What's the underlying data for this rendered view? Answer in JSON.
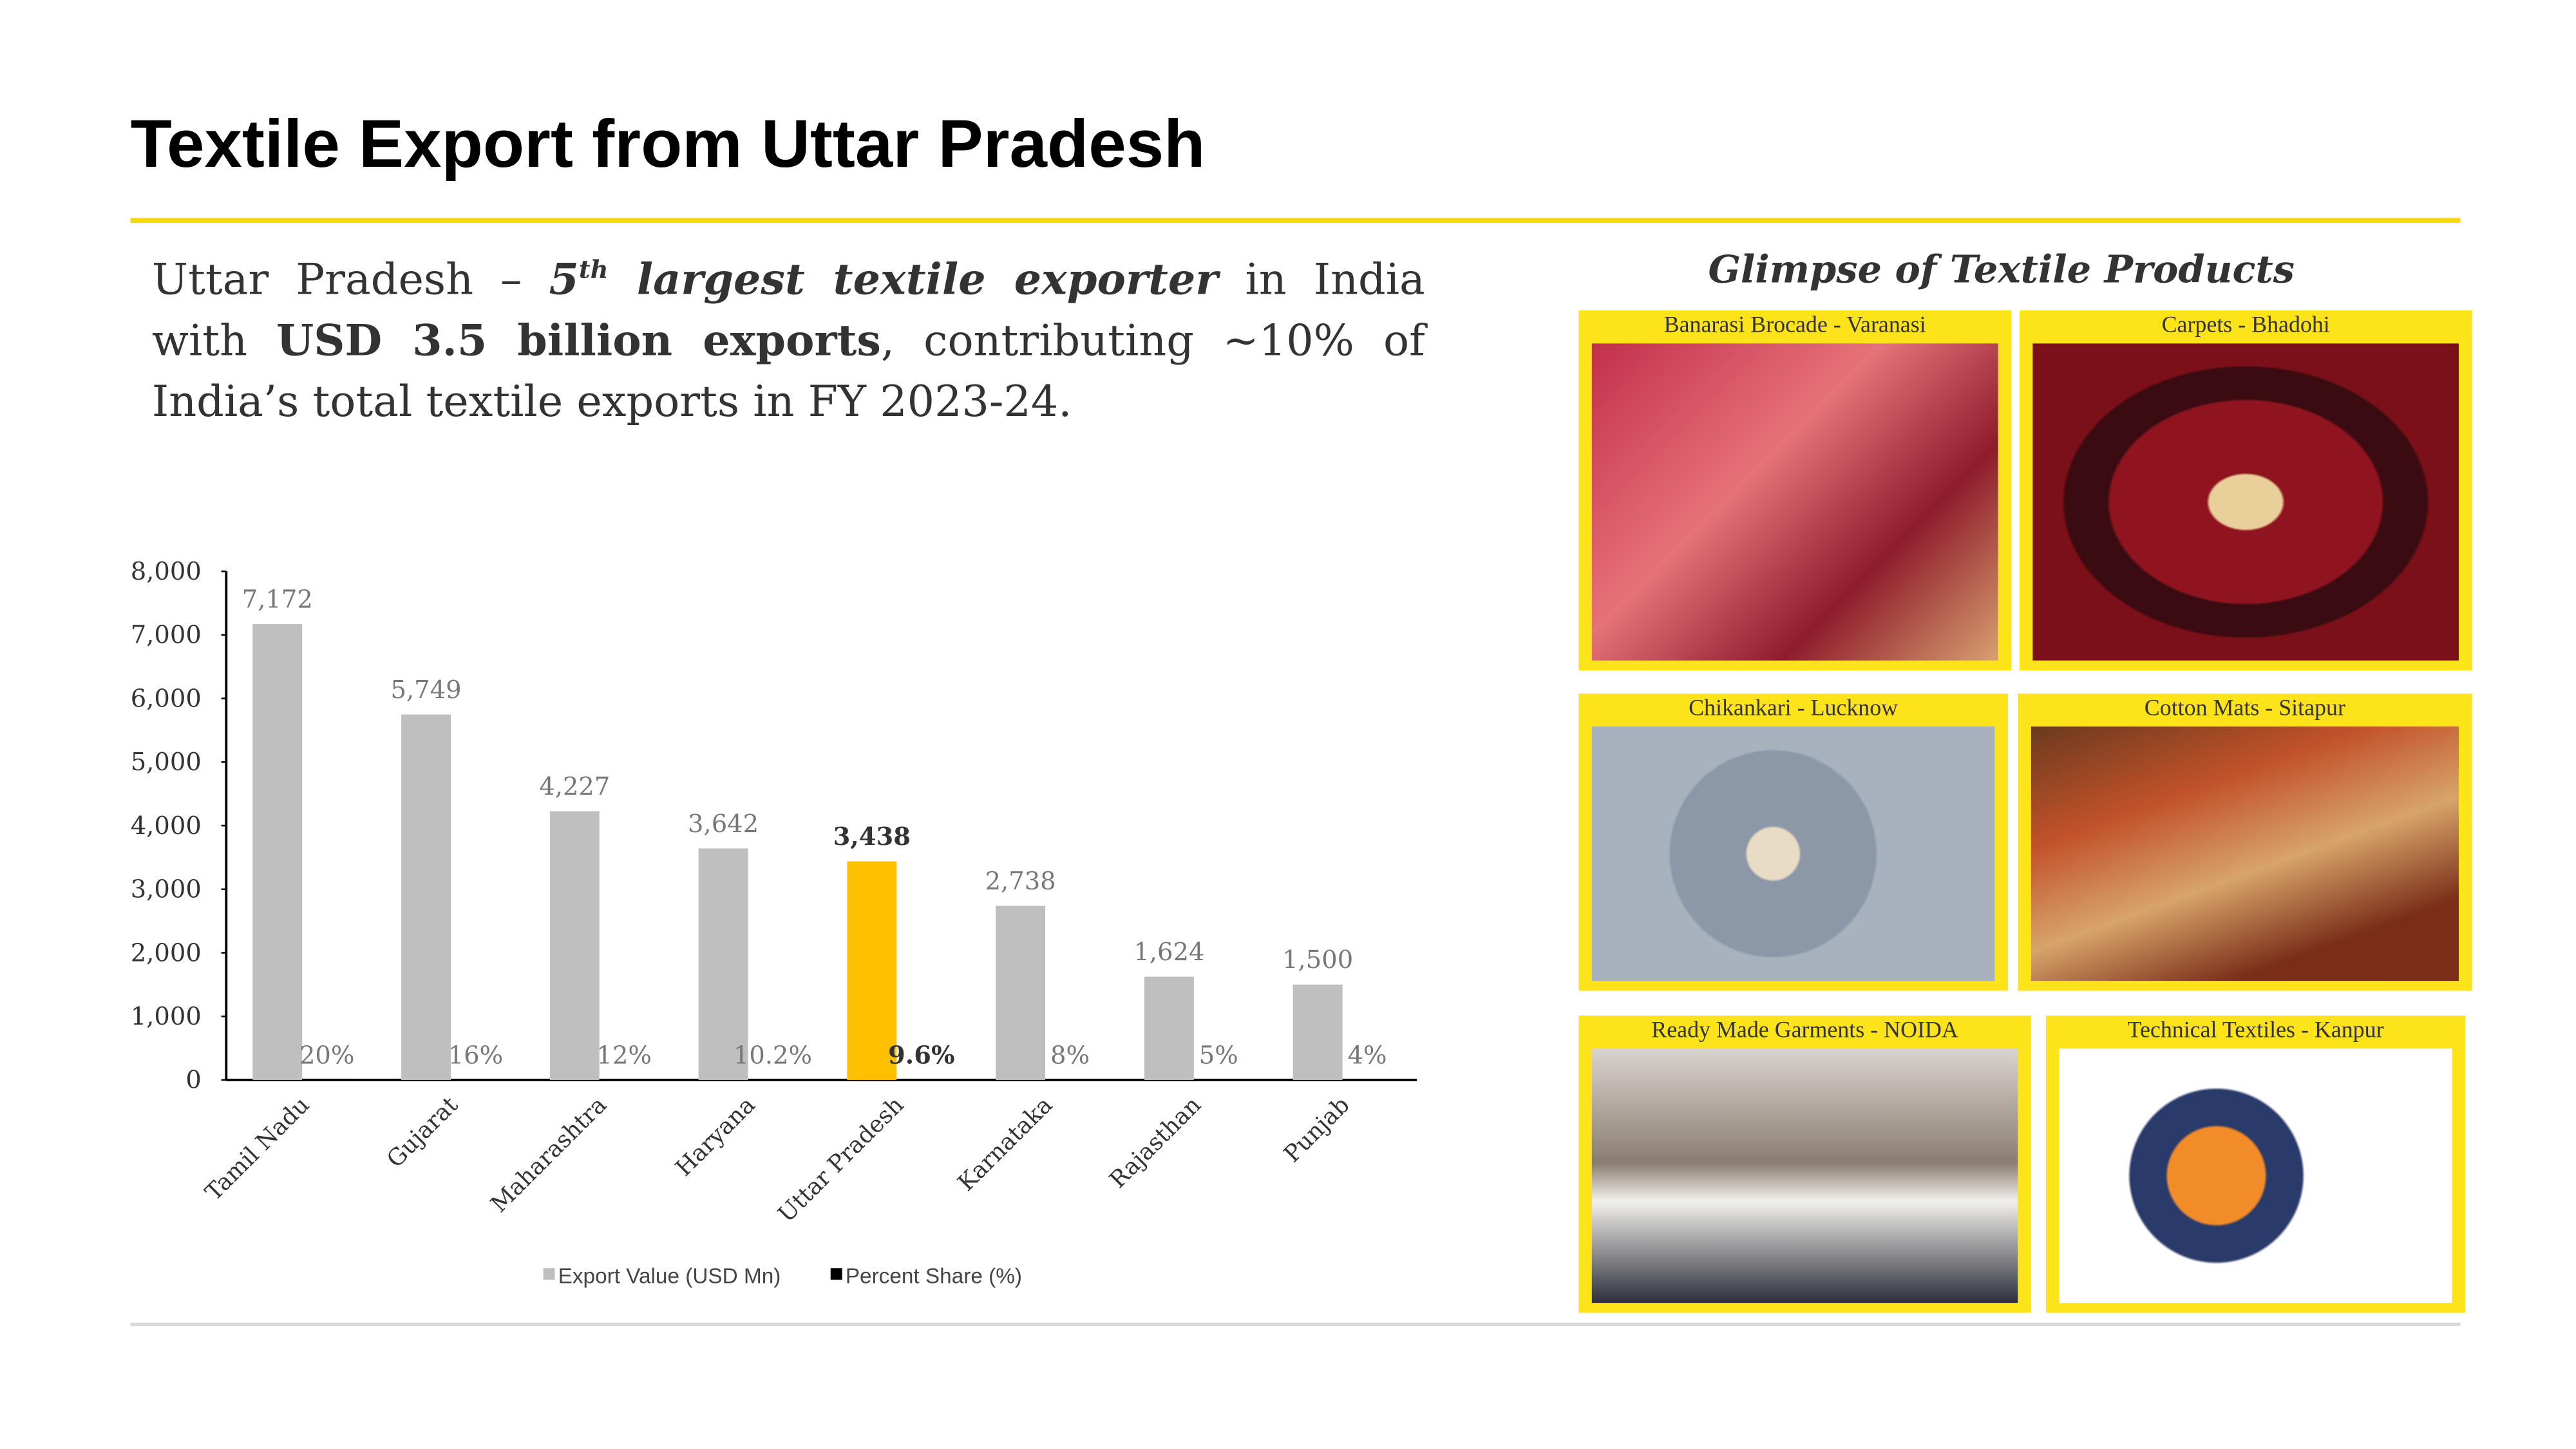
{
  "header": {
    "title": "Textile Export from Uttar Pradesh"
  },
  "headline": {
    "parts": [
      {
        "text": "Uttar Pradesh – "
      },
      {
        "text": "5",
        "bold": true,
        "italic": true
      },
      {
        "text": "th",
        "bold": true,
        "italic": true,
        "sup": true
      },
      {
        "text": " largest textile exporter",
        "bold": true,
        "italic": true
      },
      {
        "text": " in India with "
      },
      {
        "text": "USD 3.5 billion exports",
        "bold": true
      },
      {
        "text": ", contributing ~10% of India’s total textile exports in FY 2023-24."
      }
    ]
  },
  "chart_data": {
    "type": "bar",
    "categories": [
      "Tamil Nadu",
      "Gujarat",
      "Maharashtra",
      "Haryana",
      "Uttar Pradesh",
      "Karnataka",
      "Rajasthan",
      "Punjab"
    ],
    "series": [
      {
        "name": "Export Value (USD Mn)",
        "color": "#bfbfbf",
        "colors": [
          "#bfbfbf",
          "#bfbfbf",
          "#bfbfbf",
          "#bfbfbf",
          "#ffc000",
          "#bfbfbf",
          "#bfbfbf",
          "#bfbfbf"
        ],
        "values": [
          7172,
          5749,
          4227,
          3642,
          3438,
          2738,
          1624,
          1500
        ],
        "value_labels": [
          "7,172",
          "5,749",
          "4,227",
          "3,642",
          "3,438",
          "2,738",
          "1,624",
          "1,500"
        ]
      },
      {
        "name": "Percent Share (%)",
        "color": "#000000",
        "values": [
          20,
          16,
          12,
          10.2,
          9.6,
          8,
          5,
          4
        ],
        "value_labels": [
          "20%",
          "16%",
          "12%",
          "10.2%",
          "9.6%",
          "8%",
          "5%",
          "4%"
        ]
      }
    ],
    "bold_labels": [
      false,
      false,
      false,
      false,
      true,
      false,
      false,
      false
    ],
    "ylim": [
      0,
      8000
    ],
    "yticks": [
      0,
      {
        "value": 1000,
        "label": "1,000"
      },
      {
        "value": 2000,
        "label": "2,000"
      },
      {
        "value": 3000,
        "label": "3,000"
      },
      {
        "value": 4000,
        "label": "4,000"
      },
      {
        "value": 5000,
        "label": "5,000"
      },
      {
        "value": 6000,
        "label": "6,000"
      },
      {
        "value": 7000,
        "label": "7,000"
      },
      {
        "value": 8000,
        "label": "8,000"
      }
    ],
    "grid": false,
    "legend": "bottom"
  },
  "gallery": {
    "title": "Glimpse of Textile Products",
    "items": [
      "Banarasi Brocade  - Varanasi",
      "Carpets  - Bhadohi",
      "Chikankari  - Lucknow",
      "Cotton Mats  - Sitapur",
      "Ready Made Garments - NOIDA",
      "Technical Textiles - Kanpur"
    ]
  }
}
